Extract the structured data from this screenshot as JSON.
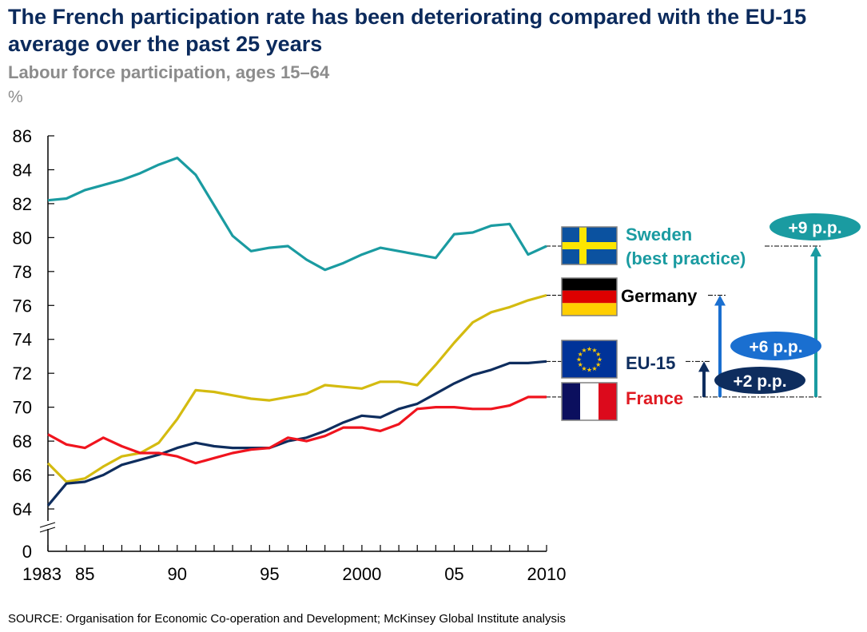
{
  "header": {
    "title": "The French participation rate has been deteriorating compared with the EU-15 average over the past 25 years",
    "subtitle": "Labour force participation, ages 15–64",
    "unit": "%"
  },
  "footer": {
    "source": "SOURCE: Organisation for Economic Co-operation and Development; McKinsey Global Institute analysis"
  },
  "chart_data": {
    "type": "line",
    "title": "Labour force participation, ages 15–64",
    "xlabel": "",
    "ylabel": "%",
    "ylim": [
      64,
      86
    ],
    "y_axis_break": true,
    "y_ticks": [
      "86",
      "84",
      "82",
      "80",
      "78",
      "76",
      "74",
      "72",
      "70",
      "68",
      "66",
      "64"
    ],
    "y_tick_values": [
      86,
      84,
      82,
      80,
      78,
      76,
      74,
      72,
      70,
      68,
      66,
      64
    ],
    "y_zero_label": "0",
    "xlim": [
      1983,
      2010
    ],
    "x": [
      1983,
      1984,
      1985,
      1986,
      1987,
      1988,
      1989,
      1990,
      1991,
      1992,
      1993,
      1994,
      1995,
      1996,
      1997,
      1998,
      1999,
      2000,
      2001,
      2002,
      2003,
      2004,
      2005,
      2006,
      2007,
      2008,
      2009,
      2010
    ],
    "x_ticks": [
      {
        "value": 1983,
        "label": "1983"
      },
      {
        "value": 1985,
        "label": "85"
      },
      {
        "value": 1990,
        "label": "90"
      },
      {
        "value": 1995,
        "label": "95"
      },
      {
        "value": 2000,
        "label": "2000"
      },
      {
        "value": 2005,
        "label": "05"
      },
      {
        "value": 2010,
        "label": "2010"
      }
    ],
    "grid": false,
    "series": [
      {
        "name": "Sweden",
        "label_lines": [
          "Sweden",
          "(best practice)"
        ],
        "color": "#1a9ba1",
        "label_color": "#1a9ba1",
        "flag": "sweden-flag",
        "values": [
          82.2,
          82.3,
          82.8,
          83.1,
          83.4,
          83.8,
          84.3,
          84.7,
          83.7,
          81.9,
          80.1,
          79.2,
          79.4,
          79.5,
          78.7,
          78.1,
          78.5,
          79.0,
          79.4,
          79.2,
          79.0,
          78.8,
          80.2,
          80.3,
          80.7,
          80.8,
          79.0,
          79.5
        ]
      },
      {
        "name": "Germany",
        "label_lines": [
          "Germany"
        ],
        "color": "#d4bb10",
        "label_color": "#000000",
        "flag": "germany-flag",
        "values": [
          66.7,
          65.6,
          65.8,
          66.5,
          67.1,
          67.3,
          67.9,
          69.3,
          71.0,
          70.9,
          70.7,
          70.5,
          70.4,
          70.6,
          70.8,
          71.3,
          71.2,
          71.1,
          71.5,
          71.5,
          71.3,
          72.5,
          73.8,
          75.0,
          75.6,
          75.9,
          76.3,
          76.6
        ]
      },
      {
        "name": "EU-15",
        "label_lines": [
          "EU-15"
        ],
        "color": "#0e2d5e",
        "label_color": "#0e2d5e",
        "flag": "eu-flag",
        "values": [
          64.2,
          65.5,
          65.6,
          66.0,
          66.6,
          66.9,
          67.2,
          67.6,
          67.9,
          67.7,
          67.6,
          67.6,
          67.6,
          68.0,
          68.2,
          68.6,
          69.1,
          69.5,
          69.4,
          69.9,
          70.2,
          70.8,
          71.4,
          71.9,
          72.2,
          72.6,
          72.6,
          72.7
        ]
      },
      {
        "name": "France",
        "label_lines": [
          "France"
        ],
        "color": "#f0141e",
        "label_color": "#e01a22",
        "flag": "france-flag",
        "values": [
          68.4,
          67.8,
          67.6,
          68.2,
          67.7,
          67.3,
          67.3,
          67.1,
          66.7,
          67.0,
          67.3,
          67.5,
          67.6,
          68.2,
          68.0,
          68.3,
          68.8,
          68.8,
          68.6,
          69.0,
          69.9,
          70.0,
          70.0,
          69.9,
          69.9,
          70.1,
          70.6,
          70.6
        ]
      }
    ],
    "annotations": [
      {
        "label": "+2 p.p.",
        "from": "France",
        "to": "EU-15",
        "gap_pp": 2,
        "color": "#0e2d5e"
      },
      {
        "label": "+6 p.p.",
        "from": "France",
        "to": "Germany",
        "gap_pp": 6,
        "color": "#1a6fd0"
      },
      {
        "label": "+9 p.p.",
        "from": "France",
        "to": "Sweden",
        "gap_pp": 9,
        "color": "#1a9ba1"
      }
    ]
  }
}
